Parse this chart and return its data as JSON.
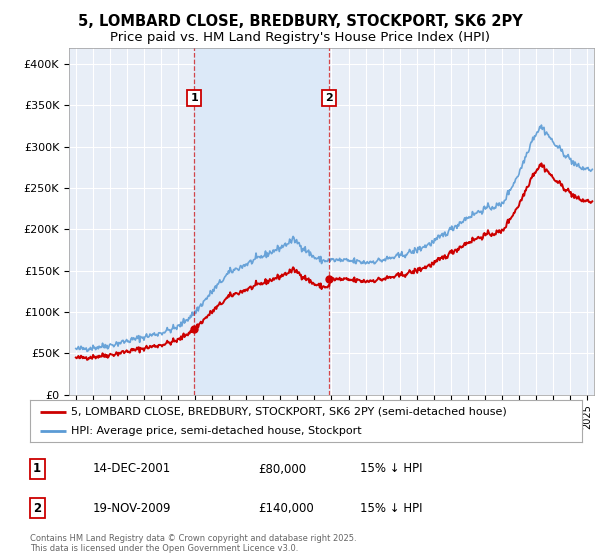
{
  "title": "5, LOMBARD CLOSE, BREDBURY, STOCKPORT, SK6 2PY",
  "subtitle": "Price paid vs. HM Land Registry's House Price Index (HPI)",
  "ylim": [
    0,
    420000
  ],
  "yticks": [
    0,
    50000,
    100000,
    150000,
    200000,
    250000,
    300000,
    350000,
    400000
  ],
  "ytick_labels": [
    "£0",
    "£50K",
    "£100K",
    "£150K",
    "£200K",
    "£250K",
    "£300K",
    "£350K",
    "£400K"
  ],
  "sale1_date": 2001.95,
  "sale1_price": 80000,
  "sale2_date": 2009.88,
  "sale2_price": 140000,
  "line1_color": "#cc0000",
  "line2_color": "#5b9bd5",
  "shade_color": "#dce9f8",
  "plot_bg_color": "#e8eef7",
  "legend_label1": "5, LOMBARD CLOSE, BREDBURY, STOCKPORT, SK6 2PY (semi-detached house)",
  "legend_label2": "HPI: Average price, semi-detached house, Stockport",
  "table_row1": [
    "1",
    "14-DEC-2001",
    "£80,000",
    "15% ↓ HPI"
  ],
  "table_row2": [
    "2",
    "19-NOV-2009",
    "£140,000",
    "15% ↓ HPI"
  ],
  "footnote": "Contains HM Land Registry data © Crown copyright and database right 2025.\nThis data is licensed under the Open Government Licence v3.0.",
  "title_fontsize": 10.5,
  "subtitle_fontsize": 9.5,
  "xlim_left": 1994.6,
  "xlim_right": 2025.4
}
